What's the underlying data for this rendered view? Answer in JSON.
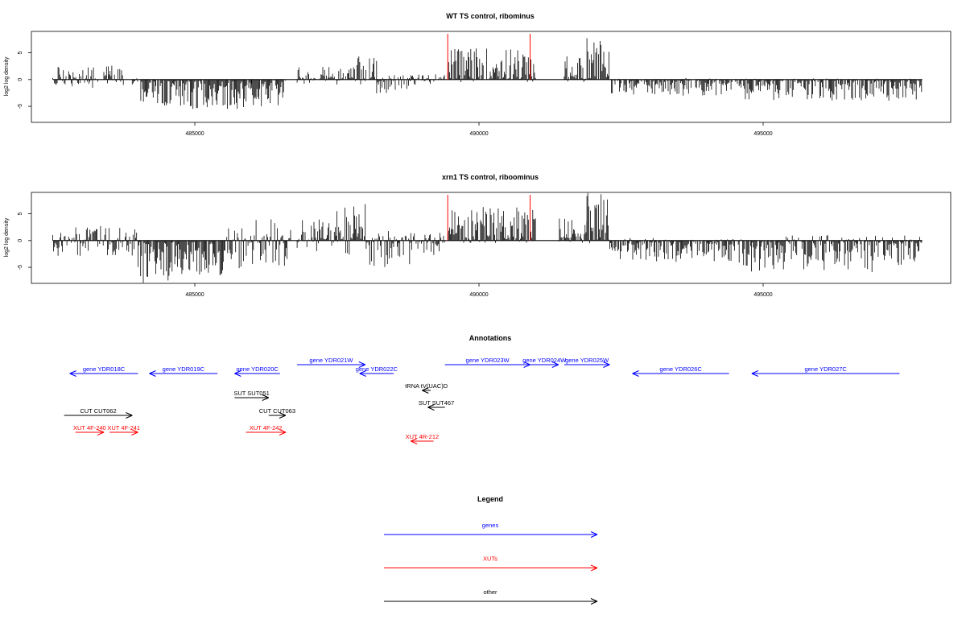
{
  "chart_data": [
    {
      "type": "bar",
      "title": "WT TS control, ribominus",
      "ylabel": "log2 log density",
      "xlabel": "",
      "xlim": [
        482200,
        498000
      ],
      "ylim": [
        -8,
        9
      ],
      "yticks": [
        -5,
        0,
        5
      ],
      "xticks": [
        485000,
        490000,
        495000
      ],
      "x_tick_labels": [
        "485000",
        "490000",
        "495000"
      ],
      "y_tick_labels": [
        "-5",
        "0",
        "5"
      ],
      "base_color": "#000000",
      "marker_color": "#ff0000",
      "marker_positions": [
        489450,
        490900
      ],
      "segments": [
        {
          "x": [
            482500,
            483300
          ],
          "y": [
            -2.0,
            2.5
          ]
        },
        {
          "x": [
            483400,
            483750
          ],
          "y": [
            -1.0,
            3.0
          ]
        },
        {
          "x": [
            483900,
            484000
          ],
          "y": [
            -1.0,
            1.0
          ]
        },
        {
          "x": [
            484050,
            484500
          ],
          "y": [
            -5.0,
            0
          ]
        },
        {
          "x": [
            484500,
            486000
          ],
          "y": [
            -5.5,
            0
          ]
        },
        {
          "x": [
            486000,
            486600
          ],
          "y": [
            -5.0,
            0
          ]
        },
        {
          "x": [
            486800,
            487700
          ],
          "y": [
            -1.0,
            2.5
          ]
        },
        {
          "x": [
            487700,
            488200
          ],
          "y": [
            -1.0,
            4.5
          ]
        },
        {
          "x": [
            488200,
            488800
          ],
          "y": [
            -3.0,
            1.0
          ]
        },
        {
          "x": [
            488800,
            489400
          ],
          "y": [
            -1.0,
            1.0
          ]
        },
        {
          "x": [
            489450,
            491000
          ],
          "y": [
            -0.5,
            6.0
          ]
        },
        {
          "x": [
            491500,
            491900
          ],
          "y": [
            -0.5,
            4.5
          ]
        },
        {
          "x": [
            491900,
            492300
          ],
          "y": [
            -0.5,
            8.0
          ]
        },
        {
          "x": [
            492300,
            494500
          ],
          "y": [
            -3.0,
            0.3
          ]
        },
        {
          "x": [
            494500,
            497800
          ],
          "y": [
            -4.0,
            0.3
          ]
        }
      ]
    },
    {
      "type": "bar",
      "title": "xrn1 TS control, riboominus",
      "ylabel": "log2 log density",
      "xlabel": "",
      "xlim": [
        482200,
        498000
      ],
      "ylim": [
        -8,
        9
      ],
      "yticks": [
        -5,
        0,
        5
      ],
      "xticks": [
        485000,
        490000,
        495000
      ],
      "x_tick_labels": [
        "485000",
        "490000",
        "495000"
      ],
      "y_tick_labels": [
        "-5",
        "0",
        "5"
      ],
      "base_color": "#000000",
      "marker_color": "#ff0000",
      "marker_positions": [
        489450,
        490900
      ],
      "segments": [
        {
          "x": [
            482500,
            483400
          ],
          "y": [
            -3.0,
            3.0
          ]
        },
        {
          "x": [
            483400,
            484000
          ],
          "y": [
            -3.0,
            2.5
          ]
        },
        {
          "x": [
            484000,
            484600
          ],
          "y": [
            -8.0,
            0
          ]
        },
        {
          "x": [
            484600,
            485500
          ],
          "y": [
            -6.5,
            0
          ]
        },
        {
          "x": [
            485500,
            486000
          ],
          "y": [
            -6.0,
            3.0
          ]
        },
        {
          "x": [
            486000,
            486700
          ],
          "y": [
            -5.0,
            4.0
          ]
        },
        {
          "x": [
            486800,
            487500
          ],
          "y": [
            -2.0,
            4.0
          ]
        },
        {
          "x": [
            487500,
            488000
          ],
          "y": [
            -3.0,
            7.0
          ]
        },
        {
          "x": [
            488000,
            488800
          ],
          "y": [
            -5.0,
            2.0
          ]
        },
        {
          "x": [
            488800,
            489400
          ],
          "y": [
            -3.0,
            1.5
          ]
        },
        {
          "x": [
            489450,
            491000
          ],
          "y": [
            -0.5,
            6.5
          ]
        },
        {
          "x": [
            491400,
            491900
          ],
          "y": [
            -0.5,
            4.5
          ]
        },
        {
          "x": [
            491900,
            492300
          ],
          "y": [
            -0.5,
            9.0
          ]
        },
        {
          "x": [
            492300,
            494500
          ],
          "y": [
            -4.0,
            0.5
          ]
        },
        {
          "x": [
            494500,
            497800
          ],
          "y": [
            -6.0,
            1.0
          ]
        }
      ]
    }
  ],
  "annotations": {
    "title": "Annotations",
    "items": [
      {
        "label": "gene YDR018C",
        "color": "#0000ff",
        "dir": "left",
        "start": 484000,
        "end": 482800,
        "row": 2
      },
      {
        "label": "gene YDR019C",
        "color": "#0000ff",
        "dir": "left",
        "start": 485400,
        "end": 484200,
        "row": 2
      },
      {
        "label": "gene YDR020C",
        "color": "#0000ff",
        "dir": "left",
        "start": 486500,
        "end": 485700,
        "row": 2
      },
      {
        "label": "gene YDR021W",
        "color": "#0000ff",
        "dir": "right",
        "start": 486800,
        "end": 488000,
        "row": 1
      },
      {
        "label": "gene YDR022C",
        "color": "#0000ff",
        "dir": "left",
        "start": 488500,
        "end": 487900,
        "row": 2
      },
      {
        "label": "gene YDR023W",
        "color": "#0000ff",
        "dir": "right",
        "start": 489400,
        "end": 490900,
        "row": 1
      },
      {
        "label": "gene YDR024W",
        "color": "#0000ff",
        "dir": "right",
        "start": 490900,
        "end": 491400,
        "row": 1
      },
      {
        "label": "gene YDR025W",
        "color": "#0000ff",
        "dir": "right",
        "start": 491500,
        "end": 492300,
        "row": 1
      },
      {
        "label": "gene YDR026C",
        "color": "#0000ff",
        "dir": "left",
        "start": 494400,
        "end": 492700,
        "row": 2
      },
      {
        "label": "gene YDR027C",
        "color": "#0000ff",
        "dir": "left",
        "start": 497400,
        "end": 494800,
        "row": 2
      },
      {
        "label": "tRNA tV(UAC)D",
        "color": "#000000",
        "dir": "left",
        "start": 489150,
        "end": 489000,
        "row": 3
      },
      {
        "label": "SUT SUT051",
        "color": "#000000",
        "dir": "right",
        "start": 485700,
        "end": 486300,
        "row": 4
      },
      {
        "label": "SUT SUT467",
        "color": "#000000",
        "dir": "left",
        "start": 489400,
        "end": 489100,
        "row": 5
      },
      {
        "label": "CUT CUT062",
        "color": "#000000",
        "dir": "right",
        "start": 482700,
        "end": 483900,
        "row": 6
      },
      {
        "label": "CUT CUT063",
        "color": "#000000",
        "dir": "right",
        "start": 486300,
        "end": 486600,
        "row": 6
      },
      {
        "label": "XUT 4F-240",
        "color": "#ff0000",
        "dir": "right",
        "start": 482900,
        "end": 483400,
        "row": 7
      },
      {
        "label": "XUT 4F-241",
        "color": "#ff0000",
        "dir": "right",
        "start": 483500,
        "end": 484000,
        "row": 7
      },
      {
        "label": "XUT 4F-242",
        "color": "#ff0000",
        "dir": "right",
        "start": 485900,
        "end": 486600,
        "row": 7
      },
      {
        "label": "XUT 4R-212",
        "color": "#ff0000",
        "dir": "left",
        "start": 489200,
        "end": 488800,
        "row": 8
      }
    ]
  },
  "legend": {
    "title": "Legend",
    "items": [
      {
        "label": "genes",
        "color": "#0000ff"
      },
      {
        "label": "XUTs",
        "color": "#ff0000"
      },
      {
        "label": "other",
        "color": "#000000"
      }
    ]
  }
}
